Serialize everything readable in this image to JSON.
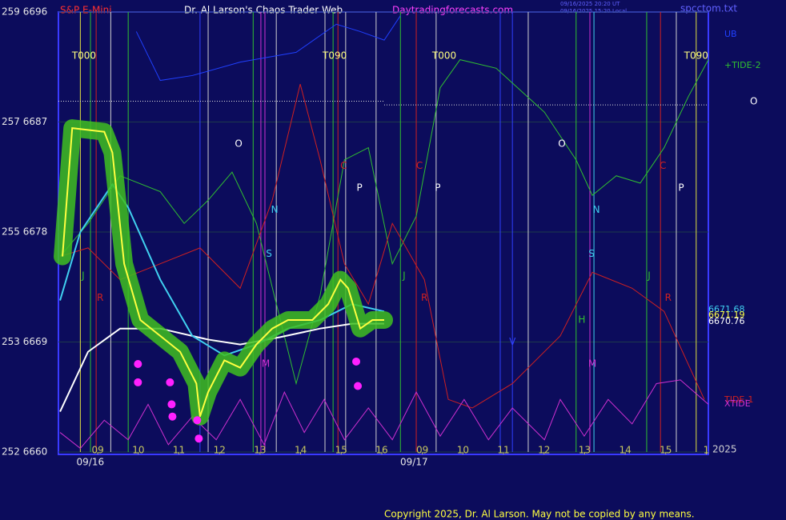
{
  "chart_data": {
    "type": "line",
    "header": {
      "left": "S&P E-Mini",
      "center": "Dr. Al Larson's Chaos Trader Web",
      "site": "Daytradingforecasts.com",
      "stamp1": "09/16/2025 20:20 UT",
      "stamp2": "09/16/2025 15:20 Local",
      "file": "spcctom.txt"
    },
    "copyright": "Copyright 2025, Dr. Al Larson. May not be copied by any means.",
    "year": "2025",
    "ylim": [
      6660,
      6696
    ],
    "yticks": [
      {
        "value": 6696,
        "label": "259  6696"
      },
      {
        "value": 6687,
        "label": "257  6687"
      },
      {
        "value": 6678,
        "label": "255  6678"
      },
      {
        "value": 6669,
        "label": "253  6669"
      },
      {
        "value": 6660,
        "label": "252  6660"
      }
    ],
    "xlim": [
      -0.97,
      15.05
    ],
    "xticks": [
      {
        "value": 0,
        "label": "09"
      },
      {
        "value": 1,
        "label": "10"
      },
      {
        "value": 2,
        "label": "11"
      },
      {
        "value": 3,
        "label": "12"
      },
      {
        "value": 4,
        "label": "13"
      },
      {
        "value": 5,
        "label": "14"
      },
      {
        "value": 6,
        "label": "15"
      },
      {
        "value": 7,
        "label": "16"
      },
      {
        "value": 8,
        "label": "09"
      },
      {
        "value": 9,
        "label": "10"
      },
      {
        "value": 10,
        "label": "11"
      },
      {
        "value": 11,
        "label": "12"
      },
      {
        "value": 12,
        "label": "13"
      },
      {
        "value": 13,
        "label": "14"
      },
      {
        "value": 14,
        "label": "15"
      },
      {
        "value": 15,
        "label": "1"
      }
    ],
    "dates": [
      {
        "label": "09/16",
        "x": -0.17
      },
      {
        "label": "09/17",
        "x": 7.81
      }
    ],
    "grid": true,
    "series": [
      {
        "name": "UB",
        "color": "#2040ff",
        "x": [
          0.95,
          1.54,
          2.33,
          3.51,
          4.89,
          5.88,
          6.47,
          7.06,
          7.46
        ],
        "values": [
          6694.4,
          6690.4,
          6690.8,
          6691.9,
          6692.7,
          6695.0,
          6694.4,
          6693.7,
          6695.7
        ]
      },
      {
        "name": "+TIDE-2",
        "color": "#30c030",
        "x": [
          -0.93,
          -0.24,
          0.55,
          1.54,
          2.13,
          2.72,
          3.31,
          3.91,
          4.5,
          4.89,
          5.48,
          6.08,
          6.67,
          7.26,
          7.85,
          8.44,
          8.93,
          9.82,
          11.01,
          11.79,
          12.19,
          12.78,
          13.37,
          13.96,
          14.56,
          15.05
        ],
        "values": [
          6676.0,
          6678.7,
          6682.6,
          6681.3,
          6678.7,
          6680.6,
          6682.9,
          6678.7,
          6670.8,
          6665.6,
          6672.8,
          6683.9,
          6684.9,
          6675.4,
          6679.3,
          6689.8,
          6692.1,
          6691.4,
          6687.8,
          6683.9,
          6681.0,
          6682.6,
          6682.0,
          6684.9,
          6689.1,
          6692.1
        ]
      },
      {
        "name": "TIDE-1",
        "color": "#d02020",
        "x": [
          -0.93,
          -0.24,
          0.55,
          1.54,
          2.52,
          3.51,
          4.3,
          4.99,
          5.48,
          6.08,
          6.67,
          7.26,
          8.05,
          8.64,
          9.23,
          10.22,
          11.4,
          12.19,
          13.17,
          13.96,
          14.95
        ],
        "values": [
          6676.0,
          6676.7,
          6674.1,
          6675.4,
          6676.7,
          6673.4,
          6680.6,
          6690.1,
          6683.9,
          6675.4,
          6672.1,
          6678.7,
          6674.1,
          6664.3,
          6663.6,
          6665.6,
          6669.5,
          6674.7,
          6673.4,
          6671.5,
          6664.3
        ]
      },
      {
        "name": "XTIDE",
        "color": "#d030d0",
        "x": [
          -0.93,
          -0.43,
          0.16,
          0.75,
          1.24,
          1.74,
          2.33,
          2.92,
          3.51,
          4.1,
          4.6,
          5.09,
          5.58,
          6.08,
          6.67,
          7.26,
          7.85,
          8.44,
          9.03,
          9.63,
          10.22,
          11.01,
          11.4,
          11.99,
          12.58,
          13.17,
          13.77,
          14.36,
          15.05
        ],
        "values": [
          6661.6,
          6660.3,
          6662.6,
          6661.0,
          6663.9,
          6660.6,
          6662.9,
          6661.0,
          6664.3,
          6660.6,
          6664.9,
          6661.6,
          6664.3,
          6661.0,
          6663.6,
          6661.0,
          6664.9,
          6661.3,
          6664.3,
          6661.0,
          6663.6,
          6661.0,
          6664.3,
          6661.3,
          6664.3,
          6662.3,
          6665.6,
          6665.9,
          6663.9
        ]
      },
      {
        "name": "6670.76",
        "color": "#ffffff",
        "x": [
          -0.93,
          -0.24,
          0.55,
          1.54,
          2.72,
          3.51,
          4.5,
          5.48,
          6.27,
          7.06
        ],
        "values": [
          6663.3,
          6668.2,
          6670.1,
          6670.1,
          6669.2,
          6668.8,
          6669.4,
          6670.1,
          6670.5,
          6670.5
        ]
      },
      {
        "name": "6671.68",
        "color": "#40d0f0",
        "x": [
          -0.93,
          -0.43,
          0.36,
          0.75,
          1.54,
          2.33,
          3.12,
          3.91,
          4.69,
          5.48,
          6.27,
          7.06
        ],
        "values": [
          6672.4,
          6678.0,
          6681.9,
          6680.0,
          6674.1,
          6669.5,
          6667.9,
          6668.8,
          6670.1,
          6670.8,
          6672.1,
          6671.5
        ]
      },
      {
        "name": "6671.19",
        "color": "#ffff40",
        "x": [
          -0.87,
          -0.63,
          0.16,
          0.36,
          0.65,
          1.05,
          1.54,
          2.03,
          2.43,
          2.52,
          2.72,
          3.12,
          3.51,
          3.91,
          4.3,
          4.69,
          5.29,
          5.68,
          5.98,
          6.17,
          6.47,
          6.77,
          7.06
        ],
        "values": [
          6676.0,
          6686.5,
          6686.2,
          6684.5,
          6675.4,
          6670.8,
          6669.5,
          6668.2,
          6665.6,
          6662.9,
          6664.9,
          6667.5,
          6666.9,
          6668.8,
          6670.1,
          6670.8,
          6670.8,
          6672.1,
          6674.1,
          6673.4,
          6670.1,
          6670.8,
          6670.8
        ]
      }
    ],
    "markers": {
      "color": "#ff20ff",
      "x": [
        0.99,
        0.99,
        1.78,
        1.82,
        1.84,
        2.45,
        2.49,
        6.37,
        6.41
      ],
      "values": [
        6667.2,
        6665.7,
        6665.7,
        6663.9,
        6662.9,
        6662.6,
        6661.1,
        6667.4,
        6665.4
      ]
    },
    "hlines": [
      {
        "x": [
          -0.97,
          7.06
        ],
        "value": 6688.7,
        "color": "#e0e0e0"
      },
      {
        "x": [
          7.06,
          15.05
        ],
        "value": 6688.4,
        "color": "#e0e0e0"
      }
    ],
    "vlines": [
      {
        "x": -0.43,
        "color": "#e0e040"
      },
      {
        "x": -0.18,
        "color": "#30c030"
      },
      {
        "x": -0.04,
        "color": "#d02020"
      },
      {
        "x": 0.32,
        "color": "#d0d0d0"
      },
      {
        "x": 0.75,
        "color": "#30c030"
      },
      {
        "x": 2.52,
        "color": "#3040ff"
      },
      {
        "x": 2.72,
        "color": "#d0d0d0"
      },
      {
        "x": 3.83,
        "color": "#30c030"
      },
      {
        "x": 4.02,
        "color": "#d030d0"
      },
      {
        "x": 4.12,
        "color": "#d030d0"
      },
      {
        "x": 4.4,
        "color": "#d0d0d0"
      },
      {
        "x": 5.6,
        "color": "#d0d0d0"
      },
      {
        "x": 5.8,
        "color": "#30c030"
      },
      {
        "x": 5.92,
        "color": "#d02020"
      },
      {
        "x": 6.11,
        "color": "#d0d0d0"
      },
      {
        "x": 6.86,
        "color": "#d0d0d0"
      },
      {
        "x": 7.46,
        "color": "#30c030"
      },
      {
        "x": 7.85,
        "color": "#d02020"
      },
      {
        "x": 8.34,
        "color": "#d0d0d0"
      },
      {
        "x": 9.92,
        "color": "#3040ff"
      },
      {
        "x": 10.22,
        "color": "#3040ff"
      },
      {
        "x": 10.61,
        "color": "#d0d0d0"
      },
      {
        "x": 11.79,
        "color": "#30c030"
      },
      {
        "x": 12.13,
        "color": "#d030d0"
      },
      {
        "x": 12.23,
        "color": "#40d0f0"
      },
      {
        "x": 13.53,
        "color": "#30c030"
      },
      {
        "x": 13.87,
        "color": "#d02020"
      },
      {
        "x": 14.26,
        "color": "#d0d0d0"
      },
      {
        "x": 14.75,
        "color": "#e0e040"
      }
    ],
    "annotations": [
      {
        "text": "T000",
        "x": -0.34,
        "y": 6692.4,
        "color": "#ffff80"
      },
      {
        "text": "T090",
        "x": 5.84,
        "y": 6692.4,
        "color": "#ffff80"
      },
      {
        "text": "T000",
        "x": 8.54,
        "y": 6692.4,
        "color": "#ffff80"
      },
      {
        "text": "T090",
        "x": 14.75,
        "y": 6692.4,
        "color": "#ffff80"
      },
      {
        "text": "O",
        "x": 3.47,
        "y": 6685.2,
        "color": "#ffffff"
      },
      {
        "text": "O",
        "x": 11.44,
        "y": 6685.2,
        "color": "#ffffff"
      },
      {
        "text": "N",
        "x": 4.36,
        "y": 6679.8,
        "color": "#40d0f0"
      },
      {
        "text": "N",
        "x": 12.29,
        "y": 6679.8,
        "color": "#40d0f0"
      },
      {
        "text": "P",
        "x": 6.45,
        "y": 6681.6,
        "color": "#ffffff"
      },
      {
        "text": "P",
        "x": 8.38,
        "y": 6681.6,
        "color": "#ffffff"
      },
      {
        "text": "P",
        "x": 14.38,
        "y": 6681.6,
        "color": "#ffffff"
      },
      {
        "text": "J",
        "x": -0.36,
        "y": 6674.4,
        "color": "#30c030"
      },
      {
        "text": "J",
        "x": 7.55,
        "y": 6674.4,
        "color": "#30c030"
      },
      {
        "text": "J",
        "x": 13.59,
        "y": 6674.4,
        "color": "#30c030"
      },
      {
        "text": "R",
        "x": 0.06,
        "y": 6672.6,
        "color": "#d02020"
      },
      {
        "text": "R",
        "x": 8.05,
        "y": 6672.6,
        "color": "#d02020"
      },
      {
        "text": "R",
        "x": 14.06,
        "y": 6672.6,
        "color": "#d02020"
      },
      {
        "text": "C",
        "x": 6.06,
        "y": 6683.4,
        "color": "#d02020"
      },
      {
        "text": "C",
        "x": 7.93,
        "y": 6683.4,
        "color": "#d02020"
      },
      {
        "text": "C",
        "x": 13.93,
        "y": 6683.4,
        "color": "#d02020"
      },
      {
        "text": "S",
        "x": 4.22,
        "y": 6676.2,
        "color": "#40d0f0"
      },
      {
        "text": "S",
        "x": 12.17,
        "y": 6676.2,
        "color": "#40d0f0"
      },
      {
        "text": "H",
        "x": 11.93,
        "y": 6670.8,
        "color": "#30c030"
      },
      {
        "text": "M",
        "x": 4.14,
        "y": 6667.2,
        "color": "#d030d0"
      },
      {
        "text": "M",
        "x": 12.19,
        "y": 6667.2,
        "color": "#d030d0"
      },
      {
        "text": "V",
        "x": 10.22,
        "y": 6669.0,
        "color": "#3040ff"
      }
    ]
  }
}
